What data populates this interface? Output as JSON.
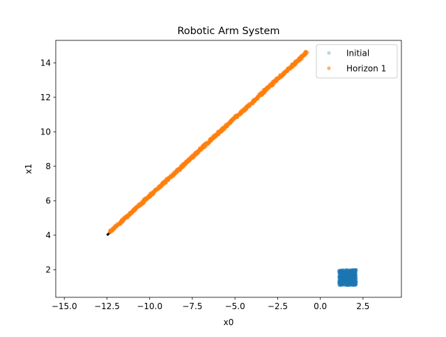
{
  "chart_data": {
    "type": "scatter",
    "title": "Robotic Arm System",
    "xlabel": "x0",
    "ylabel": "x1",
    "xlim": [
      -15.5,
      4.75
    ],
    "ylim": [
      0.4,
      15.3
    ],
    "xticks": [
      -15.0,
      -12.5,
      -10.0,
      -7.5,
      -5.0,
      -2.5,
      0.0,
      2.5
    ],
    "xtick_labels": [
      "−15.0",
      "−12.5",
      "−10.0",
      "−7.5",
      "−5.0",
      "−2.5",
      "0.0",
      "2.5"
    ],
    "yticks": [
      2,
      4,
      6,
      8,
      10,
      12,
      14
    ],
    "ytick_labels": [
      "2",
      "4",
      "6",
      "8",
      "10",
      "12",
      "14"
    ],
    "grid": false,
    "legend_position": "top-right",
    "series": [
      {
        "name": "Initial",
        "color": "#1f77b4",
        "marker_alpha": 0.3,
        "region": {
          "x": [
            1.1,
            2.1
          ],
          "y": [
            1.1,
            2.0
          ]
        }
      },
      {
        "name": "Horizon 1",
        "color": "#ff7f0e",
        "marker_alpha": 0.6,
        "line": {
          "x": [
            -12.3,
            -0.8
          ],
          "y": [
            4.2,
            14.6
          ]
        }
      }
    ],
    "reference_line": {
      "color": "#000000",
      "style": "dashed",
      "x": [
        -12.5,
        -0.8
      ],
      "y": [
        4.0,
        14.7
      ]
    }
  }
}
